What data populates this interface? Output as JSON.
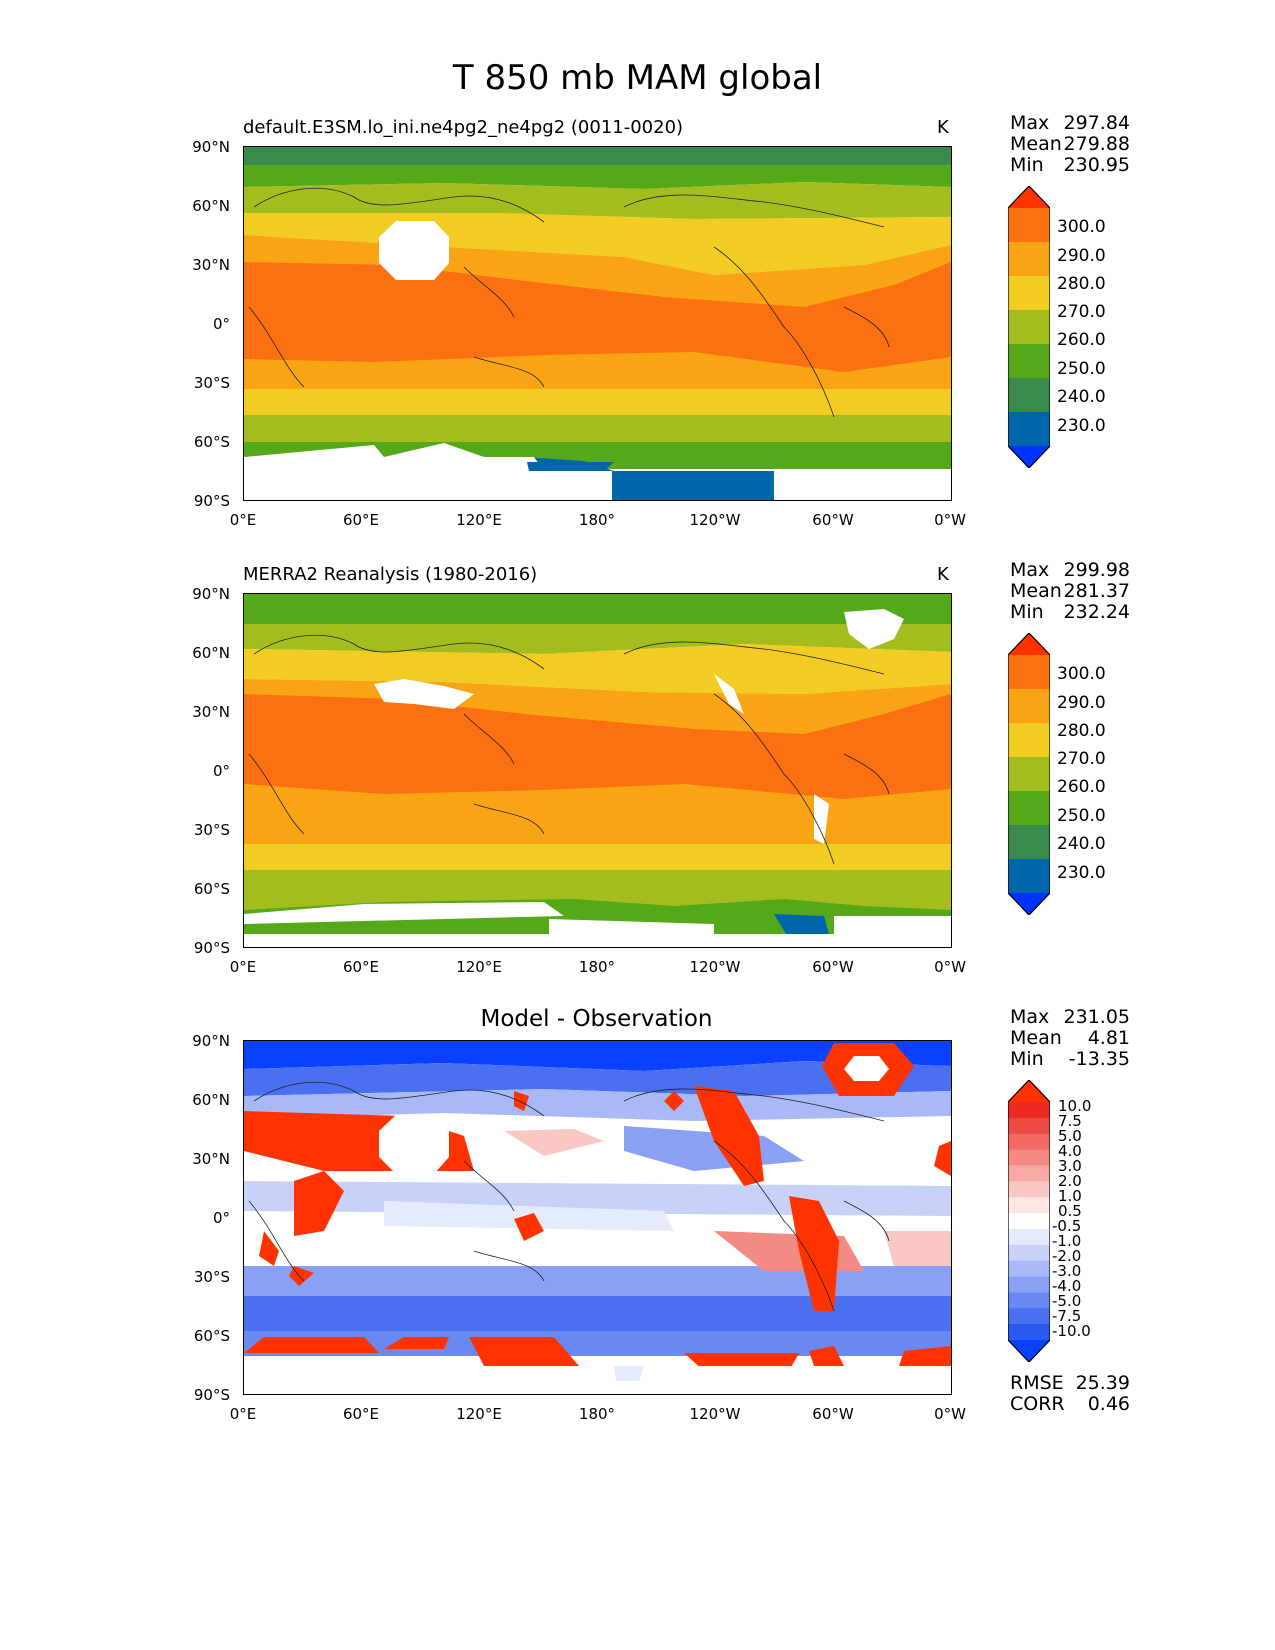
{
  "figure_title": "T 850 mb MAM global",
  "lat_ticks": [
    "90°N",
    "60°N",
    "30°N",
    "0°",
    "30°S",
    "60°S",
    "90°S"
  ],
  "lon_ticks": [
    "0°E",
    "60°E",
    "120°E",
    "180°",
    "120°W",
    "60°W",
    "0°W"
  ],
  "panels": [
    {
      "title": "default.E3SM.lo_ini.ne4pg2_ne4pg2 (0011-0020)",
      "units": "K",
      "stats": {
        "max_label": "Max",
        "max": "297.84",
        "mean_label": "Mean",
        "mean": "279.88",
        "min_label": "Min",
        "min": "230.95"
      },
      "colorbar_labels": [
        "300.0",
        "290.0",
        "280.0",
        "270.0",
        "260.0",
        "250.0",
        "240.0",
        "230.0"
      ]
    },
    {
      "title": "MERRA2 Reanalysis (1980-2016)",
      "units": "K",
      "stats": {
        "max_label": "Max",
        "max": "299.98",
        "mean_label": "Mean",
        "mean": "281.37",
        "min_label": "Min",
        "min": "232.24"
      },
      "colorbar_labels": [
        "300.0",
        "290.0",
        "280.0",
        "270.0",
        "260.0",
        "250.0",
        "240.0",
        "230.0"
      ]
    },
    {
      "title": "Model - Observation",
      "stats": {
        "max_label": "Max",
        "max": "231.05",
        "mean_label": "Mean",
        "mean": "4.81",
        "min_label": "Min",
        "min": "-13.35"
      },
      "colorbar_labels": [
        "10.0",
        "7.5",
        "5.0",
        "4.0",
        "3.0",
        "2.0",
        "1.0",
        "0.5",
        "-0.5",
        "-1.0",
        "-2.0",
        "-3.0",
        "-4.0",
        "-5.0",
        "-7.5",
        "-10.0"
      ],
      "rmse_label": "RMSE",
      "rmse": "25.39",
      "corr_label": "CORR",
      "corr": "0.46"
    }
  ],
  "colors": {
    "temp_levels": [
      "#0033ff",
      "#0066aa",
      "#3a8a4c",
      "#55a818",
      "#a4bd1e",
      "#f2cc22",
      "#f9a414",
      "#fb7010",
      "#ff3300"
    ],
    "diff_levels": [
      "#0a40ff",
      "#2a5af0",
      "#4a70f0",
      "#6a88f2",
      "#8aa0f4",
      "#a9b8f6",
      "#c8d2f8",
      "#e6ebfb",
      "#ffffff",
      "#fde6e4",
      "#fac8c4",
      "#f7aaa4",
      "#f48a84",
      "#f16a64",
      "#ee4a44",
      "#eb2a24",
      "#ff3300"
    ]
  },
  "chart_data": [
    {
      "type": "heatmap",
      "title": "default.E3SM.lo_ini.ne4pg2_ne4pg2 (0011-0020)",
      "variable": "T 850 mb",
      "units": "K",
      "x_range": [
        0,
        360
      ],
      "y_range": [
        -90,
        90
      ],
      "levels": [
        230,
        240,
        250,
        260,
        270,
        280,
        290,
        300
      ],
      "zonal_profile": [
        {
          "lat": 90,
          "value": 245
        },
        {
          "lat": 80,
          "value": 250
        },
        {
          "lat": 70,
          "value": 255
        },
        {
          "lat": 60,
          "value": 262
        },
        {
          "lat": 50,
          "value": 268
        },
        {
          "lat": 40,
          "value": 275
        },
        {
          "lat": 30,
          "value": 284
        },
        {
          "lat": 15,
          "value": 290
        },
        {
          "lat": 0,
          "value": 292
        },
        {
          "lat": -15,
          "value": 288
        },
        {
          "lat": -30,
          "value": 282
        },
        {
          "lat": -40,
          "value": 276
        },
        {
          "lat": -50,
          "value": 268
        },
        {
          "lat": -60,
          "value": 258
        },
        {
          "lat": -70,
          "value": 250
        },
        {
          "lat": -80,
          "value": 236
        },
        {
          "lat": -90,
          "value": 232
        }
      ],
      "max": 297.84,
      "mean": 279.88,
      "min": 230.95
    },
    {
      "type": "heatmap",
      "title": "MERRA2 Reanalysis (1980-2016)",
      "variable": "T 850 mb",
      "units": "K",
      "x_range": [
        0,
        360
      ],
      "y_range": [
        -90,
        90
      ],
      "levels": [
        230,
        240,
        250,
        260,
        270,
        280,
        290,
        300
      ],
      "zonal_profile": [
        {
          "lat": 90,
          "value": 255
        },
        {
          "lat": 80,
          "value": 257
        },
        {
          "lat": 70,
          "value": 262
        },
        {
          "lat": 60,
          "value": 266
        },
        {
          "lat": 50,
          "value": 272
        },
        {
          "lat": 40,
          "value": 278
        },
        {
          "lat": 30,
          "value": 285
        },
        {
          "lat": 15,
          "value": 291
        },
        {
          "lat": 0,
          "value": 293
        },
        {
          "lat": -15,
          "value": 289
        },
        {
          "lat": -30,
          "value": 283
        },
        {
          "lat": -40,
          "value": 277
        },
        {
          "lat": -50,
          "value": 269
        },
        {
          "lat": -60,
          "value": 262
        },
        {
          "lat": -70,
          "value": 255
        },
        {
          "lat": -80,
          "value": 252
        },
        {
          "lat": -90,
          "value": 250
        }
      ],
      "max": 299.98,
      "mean": 281.37,
      "min": 232.24
    },
    {
      "type": "heatmap",
      "title": "Model - Observation",
      "variable": "T 850 mb difference",
      "units": "K",
      "x_range": [
        0,
        360
      ],
      "y_range": [
        -90,
        90
      ],
      "levels": [
        -10.0,
        -7.5,
        -5.0,
        -4.0,
        -3.0,
        -2.0,
        -1.0,
        -0.5,
        0.5,
        1.0,
        2.0,
        3.0,
        4.0,
        5.0,
        7.5,
        10.0
      ],
      "zonal_profile": [
        {
          "lat": 90,
          "value": -8
        },
        {
          "lat": 80,
          "value": -6
        },
        {
          "lat": 70,
          "value": -4
        },
        {
          "lat": 60,
          "value": -1
        },
        {
          "lat": 45,
          "value": 2
        },
        {
          "lat": 30,
          "value": 1
        },
        {
          "lat": 15,
          "value": -0.5
        },
        {
          "lat": 0,
          "value": -1
        },
        {
          "lat": -15,
          "value": -1.5
        },
        {
          "lat": -30,
          "value": -3
        },
        {
          "lat": -45,
          "value": -4
        },
        {
          "lat": -60,
          "value": -3
        },
        {
          "lat": -70,
          "value": 8
        }
      ],
      "max": 231.05,
      "mean": 4.81,
      "min": -13.35,
      "rmse": 25.39,
      "corr": 0.46
    }
  ]
}
